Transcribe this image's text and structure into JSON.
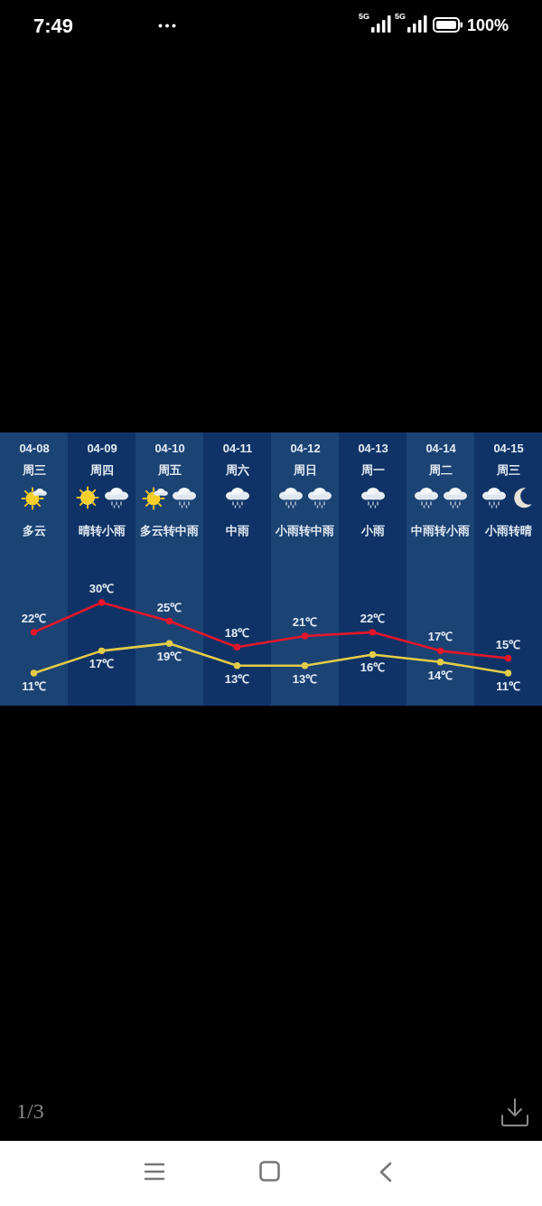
{
  "chart_data": {
    "type": "line",
    "categories": [
      "04-08",
      "04-09",
      "04-10",
      "04-11",
      "04-12",
      "04-13",
      "04-14",
      "04-15"
    ],
    "series": [
      {
        "color": "#e3172b",
        "values": [
          22,
          30,
          25,
          18,
          21,
          22,
          17,
          15
        ],
        "value_labels": [
          "22℃",
          "30℃",
          "25℃",
          "18℃",
          "21℃",
          "22℃",
          "17℃",
          "15℃"
        ]
      },
      {
        "color": "#e3cc48",
        "values": [
          11,
          17,
          19,
          13,
          13,
          16,
          14,
          11
        ],
        "value_labels": [
          "11℃",
          "17℃",
          "19℃",
          "13℃",
          "13℃",
          "16℃",
          "14℃",
          "11℃"
        ]
      }
    ],
    "marker": "circle",
    "line_style": "solid",
    "tick_labels": "x",
    "annotations": [
      "7:49",
      "5G",
      "5G",
      "100%",
      "1/3",
      "周三",
      "周四",
      "周五",
      "周六",
      "周日",
      "周一",
      "周二",
      "周三",
      "多云",
      "晴转小雨",
      "多云转中雨",
      "中雨",
      "小雨转中雨",
      "小雨",
      "中雨转小雨",
      "小雨转晴"
    ]
  }
}
